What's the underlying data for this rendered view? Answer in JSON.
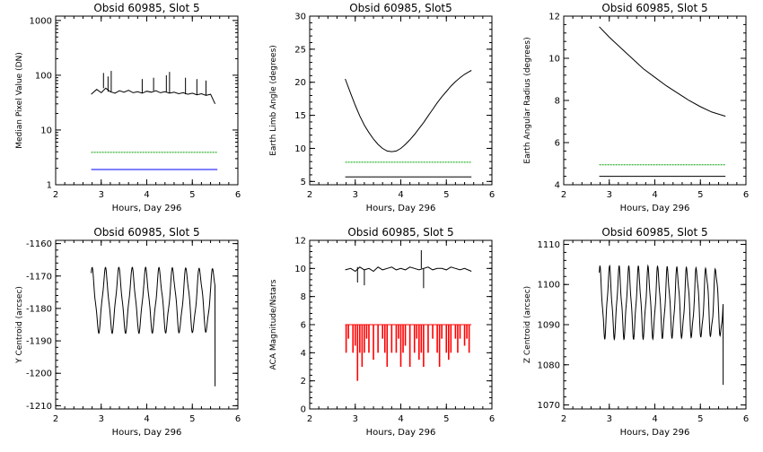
{
  "colors": {
    "axis": "#000000",
    "series_main": "#000000",
    "series_green": "#00a000",
    "series_blue": "#0000ff",
    "series_red": "#ff0000"
  },
  "chart_data": [
    {
      "type": "line",
      "title": "Obsid 60985, Slot 5",
      "xlabel": "Hours, Day 296",
      "ylabel": "Median Pixel Value (DN)",
      "xlim": [
        2,
        6
      ],
      "ylim": [
        1,
        1200
      ],
      "yscale": "log",
      "xticks": [
        "2",
        "3",
        "4",
        "5",
        "6"
      ],
      "yticks": [
        "1",
        "10",
        "100",
        "1000"
      ],
      "series": [
        {
          "color": "#000000",
          "x": [
            2.78,
            2.9,
            3.0,
            3.1,
            3.2,
            3.3,
            3.4,
            3.5,
            3.6,
            3.7,
            3.8,
            3.9,
            4.0,
            4.1,
            4.2,
            4.3,
            4.4,
            4.5,
            4.6,
            4.7,
            4.8,
            4.9,
            5.0,
            5.1,
            5.2,
            5.3,
            5.4,
            5.5
          ],
          "y": [
            45,
            55,
            48,
            58,
            50,
            47,
            52,
            49,
            53,
            48,
            50,
            47,
            51,
            49,
            52,
            48,
            50,
            47,
            49,
            46,
            48,
            45,
            47,
            44,
            46,
            43,
            45,
            30
          ],
          "spikes": [
            [
              3.05,
              110
            ],
            [
              3.15,
              95
            ],
            [
              3.22,
              120
            ],
            [
              3.9,
              85
            ],
            [
              4.15,
              90
            ],
            [
              4.43,
              100
            ],
            [
              4.5,
              115
            ],
            [
              4.85,
              90
            ],
            [
              5.1,
              85
            ],
            [
              5.3,
              80
            ]
          ]
        },
        {
          "color": "#00a000",
          "dash": true,
          "x": [
            2.78,
            5.55
          ],
          "y": [
            3.9,
            3.9
          ]
        },
        {
          "color": "#0000ff",
          "x": [
            2.78,
            5.55
          ],
          "y": [
            1.9,
            1.9
          ]
        }
      ]
    },
    {
      "type": "line",
      "title": "Obsid 60985, Slot5",
      "xlabel": "Hours, Day 296",
      "ylabel": "Earth Limb Angle (degrees)",
      "xlim": [
        2,
        6
      ],
      "ylim": [
        4.5,
        30
      ],
      "xticks": [
        "2",
        "3",
        "4",
        "5",
        "6"
      ],
      "yticks": [
        "5",
        "10",
        "15",
        "20",
        "25",
        "30"
      ],
      "series": [
        {
          "color": "#000000",
          "x": [
            2.78,
            2.9,
            3.0,
            3.1,
            3.2,
            3.3,
            3.4,
            3.5,
            3.6,
            3.7,
            3.8,
            3.9,
            4.0,
            4.1,
            4.2,
            4.3,
            4.4,
            4.5,
            4.6,
            4.7,
            4.8,
            4.9,
            5.0,
            5.1,
            5.2,
            5.3,
            5.4,
            5.5,
            5.55
          ],
          "y": [
            20.5,
            18.3,
            16.5,
            14.9,
            13.5,
            12.4,
            11.4,
            10.6,
            10.0,
            9.6,
            9.5,
            9.6,
            10.0,
            10.6,
            11.3,
            12.1,
            13.0,
            13.9,
            14.9,
            15.9,
            16.9,
            17.8,
            18.6,
            19.4,
            20.1,
            20.7,
            21.2,
            21.6,
            21.8
          ]
        },
        {
          "color": "#00a000",
          "dash": true,
          "x": [
            2.78,
            5.55
          ],
          "y": [
            7.9,
            7.9
          ]
        },
        {
          "color": "#000000",
          "x": [
            2.78,
            5.55
          ],
          "y": [
            5.7,
            5.7
          ]
        }
      ]
    },
    {
      "type": "line",
      "title": "Obsid 60985, Slot 5",
      "xlabel": "Hours, Day 296",
      "ylabel": "Earth Angular Radius (degrees)",
      "xlim": [
        2,
        6
      ],
      "ylim": [
        4,
        12
      ],
      "xticks": [
        "2",
        "3",
        "4",
        "5",
        "6"
      ],
      "yticks": [
        "4",
        "6",
        "8",
        "10",
        "12"
      ],
      "series": [
        {
          "color": "#000000",
          "x": [
            2.78,
            3.0,
            3.25,
            3.5,
            3.75,
            4.0,
            4.25,
            4.5,
            4.75,
            5.0,
            5.25,
            5.55
          ],
          "y": [
            11.5,
            11.0,
            10.5,
            10.0,
            9.5,
            9.1,
            8.7,
            8.35,
            8.0,
            7.7,
            7.45,
            7.25
          ]
        },
        {
          "color": "#00a000",
          "dash": true,
          "x": [
            2.78,
            5.55
          ],
          "y": [
            4.95,
            4.95
          ]
        },
        {
          "color": "#000000",
          "x": [
            2.78,
            5.55
          ],
          "y": [
            4.4,
            4.4
          ]
        }
      ]
    },
    {
      "type": "line",
      "title": "Obsid 60985, Slot 5",
      "xlabel": "Hours, Day 296",
      "ylabel": "Y Centroid (arcsec)",
      "xlim": [
        2,
        6
      ],
      "ylim": [
        -1211,
        -1159
      ],
      "xticks": [
        "2",
        "3",
        "4",
        "5",
        "6"
      ],
      "yticks": [
        "-1210",
        "-1200",
        "-1190",
        "-1180",
        "-1170",
        "-1160"
      ],
      "series": [
        {
          "color": "#000000",
          "wave": {
            "x0": 2.78,
            "x1": 5.5,
            "period": 0.295,
            "center": -1177.5,
            "amp": 9,
            "drop_to": -1204
          }
        }
      ]
    },
    {
      "type": "bar",
      "title": "Obsid 60985, Slot 5",
      "xlabel": "Hours, Day 296",
      "ylabel": "ACA Magnitude/Nstars",
      "xlim": [
        2,
        6
      ],
      "ylim": [
        0,
        12
      ],
      "xticks": [
        "2",
        "3",
        "4",
        "5",
        "6"
      ],
      "yticks": [
        "0",
        "2",
        "4",
        "6",
        "8",
        "10",
        "12"
      ],
      "series": [
        {
          "color": "#000000",
          "x": [
            2.78,
            2.9,
            3.0,
            3.1,
            3.2,
            3.3,
            3.4,
            3.5,
            3.6,
            3.7,
            3.8,
            3.9,
            4.0,
            4.1,
            4.2,
            4.3,
            4.4,
            4.5,
            4.6,
            4.7,
            4.8,
            4.9,
            5.0,
            5.1,
            5.2,
            5.3,
            5.4,
            5.55
          ],
          "y": [
            9.9,
            10.0,
            9.8,
            10.1,
            9.9,
            10.0,
            9.8,
            10.1,
            9.9,
            10.0,
            10.1,
            9.9,
            10.0,
            9.9,
            10.1,
            10.0,
            9.9,
            10.0,
            10.1,
            9.9,
            10.0,
            10.0,
            9.9,
            10.1,
            10.0,
            9.9,
            10.0,
            9.8
          ],
          "spikes": [
            [
              3.05,
              9.0
            ],
            [
              3.2,
              8.8
            ],
            [
              4.45,
              11.3
            ],
            [
              4.5,
              8.6
            ]
          ]
        },
        {
          "color": "#ff0000",
          "baseline": 6,
          "x": [
            2.8,
            2.85,
            2.95,
            3.0,
            3.05,
            3.1,
            3.15,
            3.2,
            3.25,
            3.3,
            3.4,
            3.5,
            3.6,
            3.65,
            3.7,
            3.8,
            3.9,
            3.95,
            4.0,
            4.05,
            4.1,
            4.2,
            4.3,
            4.35,
            4.4,
            4.45,
            4.5,
            4.6,
            4.7,
            4.8,
            4.85,
            4.9,
            5.0,
            5.05,
            5.1,
            5.2,
            5.25,
            5.3,
            5.4,
            5.45,
            5.5
          ],
          "y": [
            4.0,
            5.0,
            4.0,
            4.5,
            2.0,
            4.0,
            3.0,
            4.0,
            5.0,
            4.0,
            3.5,
            4.0,
            5.0,
            4.0,
            3.0,
            4.0,
            4.0,
            5.0,
            3.0,
            4.0,
            4.5,
            3.0,
            4.0,
            5.0,
            3.5,
            4.0,
            3.0,
            4.0,
            5.0,
            4.0,
            3.0,
            5.0,
            4.0,
            3.5,
            4.0,
            5.0,
            4.0,
            5.0,
            4.5,
            5.0,
            4.0
          ]
        }
      ]
    },
    {
      "type": "line",
      "title": "Obsid 60985, Slot 5",
      "xlabel": "Hours, Day 296",
      "ylabel": "Z Centroid (arcsec)",
      "xlim": [
        2,
        6
      ],
      "ylim": [
        1069,
        1111
      ],
      "xticks": [
        "2",
        "3",
        "4",
        "5",
        "6"
      ],
      "yticks": [
        "1070",
        "1080",
        "1090",
        "1100",
        "1110"
      ],
      "series": [
        {
          "color": "#000000",
          "wave": {
            "x0": 2.78,
            "x1": 5.5,
            "period": 0.212,
            "center": 1095.5,
            "amp": 8,
            "drop_to": 1075
          }
        }
      ]
    }
  ]
}
